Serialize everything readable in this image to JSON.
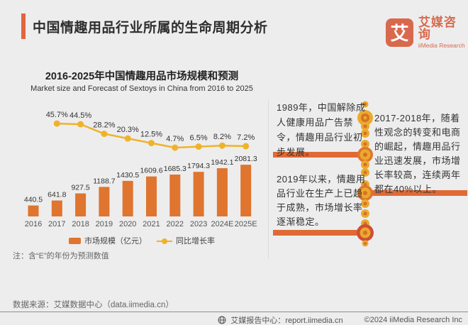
{
  "header": {
    "title": "中国情趣用品行业所属的生命周期分析",
    "logo": {
      "glyph": "艾",
      "name_cn": "艾媒咨询",
      "name_en": "iiMedia Research"
    }
  },
  "chart": {
    "title_cn": "2016-2025年中国情趣用品市场规模和预测",
    "title_en": "Market size and Forecast of Sextoys in China from 2016 to 2025",
    "note": "注：含“E”的年份为预测数值",
    "legend": {
      "bar_label": "市场规模（亿元）",
      "line_label": "同比增长率"
    }
  },
  "chart_data": {
    "type": "bar",
    "title": "2016-2025年中国情趣用品市场规模和预测",
    "categories": [
      "2016",
      "2017",
      "2018",
      "2019",
      "2020",
      "2021",
      "2022",
      "2023",
      "2024E",
      "2025E"
    ],
    "series": [
      {
        "name": "市场规模（亿元）",
        "type": "bar",
        "unit": "亿元",
        "values": [
          440.5,
          641.8,
          927.5,
          1188.7,
          1430.5,
          1609.6,
          1685.3,
          1794.3,
          1942.1,
          2081.3
        ]
      },
      {
        "name": "同比增长率",
        "type": "line",
        "unit": "%",
        "start_category_index": 1,
        "values": [
          45.7,
          44.5,
          28.2,
          20.3,
          12.5,
          4.7,
          6.5,
          8.2,
          7.2
        ]
      }
    ],
    "legend_position": "bottom",
    "grid": false,
    "value_labels": true
  },
  "timeline": {
    "events": [
      {
        "side": "left",
        "text": "1989年，中国解除成人健康用品广告禁令，情趣用品行业初步发展。"
      },
      {
        "side": "right",
        "text": "2017-2018年，随着性观念的转变和电商的崛起，情趣用品行业迅速发展，市场增长率较高，连续两年都在40%以上。"
      },
      {
        "side": "left",
        "text": "2019年以来，情趣用品行业在生产上已趋于成熟，市场增长率逐渐稳定。"
      }
    ]
  },
  "footer": {
    "source": "数据来源：艾媒数据中心（data.iimedia.cn）",
    "report_center": "艾媒报告中心：report.iimedia.cn",
    "copyright": "©2024  iiMedia Research Inc"
  },
  "colors": {
    "accent": "#e2653e",
    "bar": "#df752e",
    "line": "#efb32a",
    "logo": "#d8694d",
    "tl_yellow": "#eaaa2c",
    "tl_orange": "#d86f28",
    "tl_junction": "#e0752f",
    "tl_junction_red": "#ce4f36",
    "tl_connector": "#e06a35",
    "text_dark": "#333333",
    "background": "#ededee"
  }
}
